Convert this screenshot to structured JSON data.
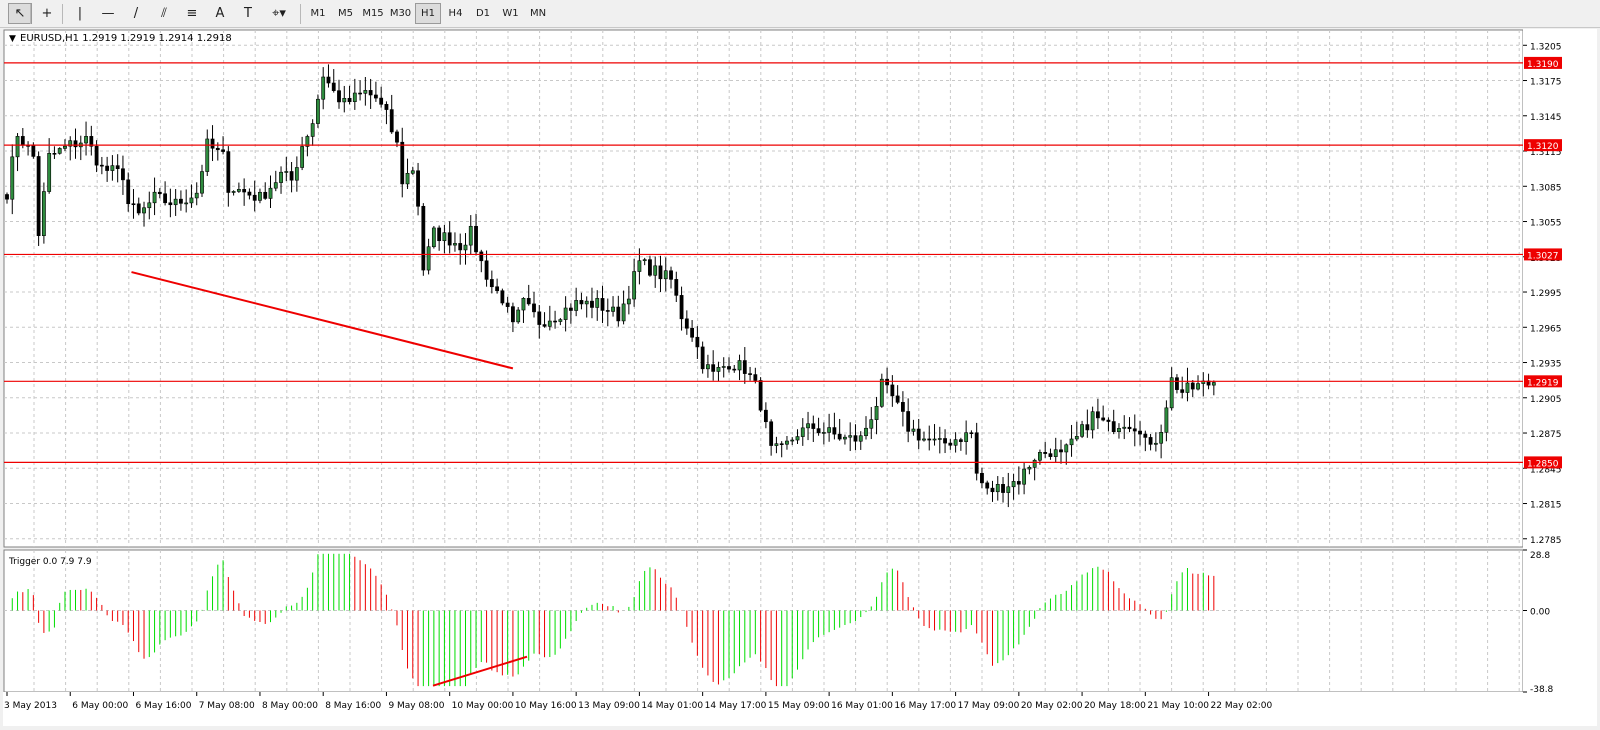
{
  "toolbar": {
    "tools": [
      {
        "name": "cursor-arrow-icon",
        "glyph": "↖"
      },
      {
        "name": "crosshair-icon",
        "glyph": "+"
      },
      {
        "name": "vertical-line-icon",
        "glyph": "|"
      },
      {
        "name": "horizontal-line-icon",
        "glyph": "—"
      },
      {
        "name": "trendline-icon",
        "glyph": "/"
      },
      {
        "name": "equidistant-channel-icon",
        "glyph": "⫽"
      },
      {
        "name": "fibonacci-icon",
        "glyph": "≡"
      },
      {
        "name": "text-icon",
        "glyph": "A"
      },
      {
        "name": "text-label-icon",
        "glyph": "T"
      },
      {
        "name": "shapes-dropdown-icon",
        "glyph": "⌖▾"
      }
    ],
    "timeframes": [
      "M1",
      "M5",
      "M15",
      "M30",
      "H1",
      "H4",
      "D1",
      "W1",
      "MN"
    ],
    "active_timeframe": "H1"
  },
  "chart_data": {
    "type": "candlestick",
    "symbol_header": "EURUSD,H1  1.2919 1.2919 1.2914 1.2918",
    "price_ticks": [
      "1.3205",
      "1.3175",
      "1.3145",
      "1.3115",
      "1.3085",
      "1.3055",
      "1.3025",
      "1.2995",
      "1.2965",
      "1.2935",
      "1.2905",
      "1.2875",
      "1.2845",
      "1.2815",
      "1.2785"
    ],
    "ylim": [
      1.2778,
      1.3218
    ],
    "levels": [
      {
        "price": 1.319,
        "label": "1.3190"
      },
      {
        "price": 1.312,
        "label": "1.3120"
      },
      {
        "price": 1.3027,
        "label": "1.3027"
      },
      {
        "price": 1.2919,
        "label": "1.2919"
      },
      {
        "price": 1.285,
        "label": "1.2850"
      }
    ],
    "trend_line": {
      "from": [
        24,
        1.3012
      ],
      "to": [
        96,
        1.293
      ]
    },
    "time_labels": [
      {
        "bar": 0,
        "label": "3 May 2013"
      },
      {
        "bar": 12,
        "label": "6 May 00:00"
      },
      {
        "bar": 24,
        "label": "6 May 16:00"
      },
      {
        "bar": 36,
        "label": "7 May 08:00"
      },
      {
        "bar": 48,
        "label": "8 May 00:00"
      },
      {
        "bar": 60,
        "label": "8 May 16:00"
      },
      {
        "bar": 72,
        "label": "9 May 08:00"
      },
      {
        "bar": 84,
        "label": "10 May 00:00"
      },
      {
        "bar": 96,
        "label": "10 May 16:00"
      },
      {
        "bar": 108,
        "label": "13 May 09:00"
      },
      {
        "bar": 120,
        "label": "14 May 01:00"
      },
      {
        "bar": 132,
        "label": "14 May 17:00"
      },
      {
        "bar": 144,
        "label": "15 May 09:00"
      },
      {
        "bar": 156,
        "label": "16 May 01:00"
      },
      {
        "bar": 168,
        "label": "16 May 17:00"
      },
      {
        "bar": 180,
        "label": "17 May 09:00"
      },
      {
        "bar": 192,
        "label": "20 May 02:00"
      },
      {
        "bar": 204,
        "label": "20 May 18:00"
      },
      {
        "bar": 216,
        "label": "21 May 10:00"
      },
      {
        "bar": 228,
        "label": "22 May 02:00"
      }
    ],
    "bar_count": 230,
    "close_anchors": [
      [
        0,
        1.308
      ],
      [
        2,
        1.313
      ],
      [
        5,
        1.311
      ],
      [
        6,
        1.3045
      ],
      [
        8,
        1.311
      ],
      [
        12,
        1.312
      ],
      [
        15,
        1.3125
      ],
      [
        18,
        1.31
      ],
      [
        22,
        1.3095
      ],
      [
        23,
        1.307
      ],
      [
        25,
        1.306
      ],
      [
        28,
        1.3075
      ],
      [
        32,
        1.307
      ],
      [
        36,
        1.308
      ],
      [
        38,
        1.312
      ],
      [
        41,
        1.311
      ],
      [
        42,
        1.3085
      ],
      [
        45,
        1.308
      ],
      [
        48,
        1.3075
      ],
      [
        52,
        1.3095
      ],
      [
        54,
        1.309
      ],
      [
        56,
        1.312
      ],
      [
        58,
        1.314
      ],
      [
        60,
        1.318
      ],
      [
        62,
        1.3165
      ],
      [
        64,
        1.3155
      ],
      [
        66,
        1.316
      ],
      [
        68,
        1.3165
      ],
      [
        70,
        1.316
      ],
      [
        72,
        1.3145
      ],
      [
        74,
        1.312
      ],
      [
        75,
        1.309
      ],
      [
        77,
        1.31
      ],
      [
        78,
        1.307
      ],
      [
        79,
        1.3015
      ],
      [
        81,
        1.3045
      ],
      [
        84,
        1.304
      ],
      [
        86,
        1.3035
      ],
      [
        88,
        1.3045
      ],
      [
        90,
        1.302
      ],
      [
        92,
        1.3
      ],
      [
        94,
        1.299
      ],
      [
        96,
        1.2965
      ],
      [
        98,
        1.2985
      ],
      [
        101,
        1.297
      ],
      [
        104,
        1.2975
      ],
      [
        108,
        1.2985
      ],
      [
        112,
        1.2985
      ],
      [
        116,
        1.2975
      ],
      [
        118,
        1.2995
      ],
      [
        120,
        1.302
      ],
      [
        122,
        1.3015
      ],
      [
        124,
        1.301
      ],
      [
        126,
        1.3005
      ],
      [
        128,
        1.2975
      ],
      [
        130,
        1.296
      ],
      [
        132,
        1.2935
      ],
      [
        134,
        1.2925
      ],
      [
        137,
        1.2935
      ],
      [
        140,
        1.293
      ],
      [
        142,
        1.2915
      ],
      [
        143,
        1.29
      ],
      [
        145,
        1.286
      ],
      [
        147,
        1.286
      ],
      [
        150,
        1.2875
      ],
      [
        153,
        1.288
      ],
      [
        156,
        1.2875
      ],
      [
        159,
        1.287
      ],
      [
        162,
        1.287
      ],
      [
        165,
        1.29
      ],
      [
        166,
        1.2915
      ],
      [
        168,
        1.2905
      ],
      [
        171,
        1.288
      ],
      [
        174,
        1.287
      ],
      [
        177,
        1.2865
      ],
      [
        180,
        1.287
      ],
      [
        183,
        1.2875
      ],
      [
        184,
        1.284
      ],
      [
        186,
        1.2825
      ],
      [
        189,
        1.283
      ],
      [
        192,
        1.2835
      ],
      [
        195,
        1.2855
      ],
      [
        198,
        1.286
      ],
      [
        200,
        1.2855
      ],
      [
        203,
        1.287
      ],
      [
        206,
        1.289
      ],
      [
        209,
        1.288
      ],
      [
        212,
        1.2885
      ],
      [
        215,
        1.288
      ],
      [
        217,
        1.286
      ],
      [
        219,
        1.288
      ],
      [
        221,
        1.292
      ],
      [
        223,
        1.291
      ],
      [
        226,
        1.2915
      ],
      [
        229,
        1.2918
      ]
    ],
    "indicator": {
      "name": "Trigger",
      "header": "Trigger 0.0 7.9 7.9",
      "ticks": [
        "28.8",
        "0.00",
        "-38.8"
      ],
      "ylim": [
        -38.8,
        28.8
      ],
      "colors": {
        "up": "#00dd00",
        "down": "#ee0000"
      }
    },
    "colors": {
      "background": "#ffffff",
      "grid": "#c8c8c8",
      "candle": "#000000",
      "up_body": "#2e8b3e",
      "down_body": "#000000",
      "level": "#ee0000",
      "trend": "#ee0000"
    }
  }
}
